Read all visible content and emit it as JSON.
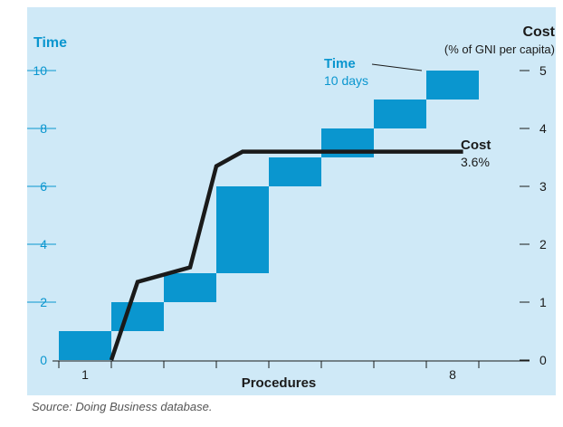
{
  "colors": {
    "panel_bg": "#cfe9f7",
    "bar": "#0a96cf",
    "accent_text": "#0a96cf",
    "cost_line": "#1a1a1a",
    "text": "#1a1a1a"
  },
  "labels": {
    "time_axis_title": "Time",
    "cost_axis_title": "Cost",
    "cost_axis_subtitle": "(% of GNI per capita)",
    "x_axis_title": "Procedures",
    "time_annotation_title": "Time",
    "time_annotation_value": "10 days",
    "cost_annotation_title": "Cost",
    "cost_annotation_value": "3.6%",
    "source_prefix": "Source: ",
    "source_em": "Doing Business",
    "source_suffix": " database."
  },
  "chart_data": {
    "type": "bar",
    "xlabel": "Procedures",
    "left_ylabel": "Time",
    "right_ylabel": "Cost (% of GNI per capita)",
    "x_ticks": [
      1,
      8
    ],
    "left_ylim": [
      0,
      10
    ],
    "left_yticks": [
      0,
      2,
      4,
      6,
      8,
      10
    ],
    "right_ylim": [
      0,
      5
    ],
    "right_yticks": [
      0,
      1,
      2,
      3,
      4,
      5
    ],
    "time_series": {
      "name": "Time",
      "procedures": [
        1,
        2,
        3,
        4,
        5,
        6,
        7,
        8
      ],
      "start": [
        0,
        1,
        2,
        3,
        6,
        7,
        8,
        9
      ],
      "end": [
        1,
        2,
        3,
        6,
        7,
        8,
        9,
        10
      ],
      "total": "10 days"
    },
    "cost_series": {
      "name": "Cost",
      "x": [
        1,
        1.5,
        2.5,
        3,
        3.5,
        5,
        7.7
      ],
      "y": [
        0,
        1.35,
        1.6,
        3.35,
        3.6,
        3.6,
        3.6
      ],
      "total": "3.6%"
    }
  }
}
